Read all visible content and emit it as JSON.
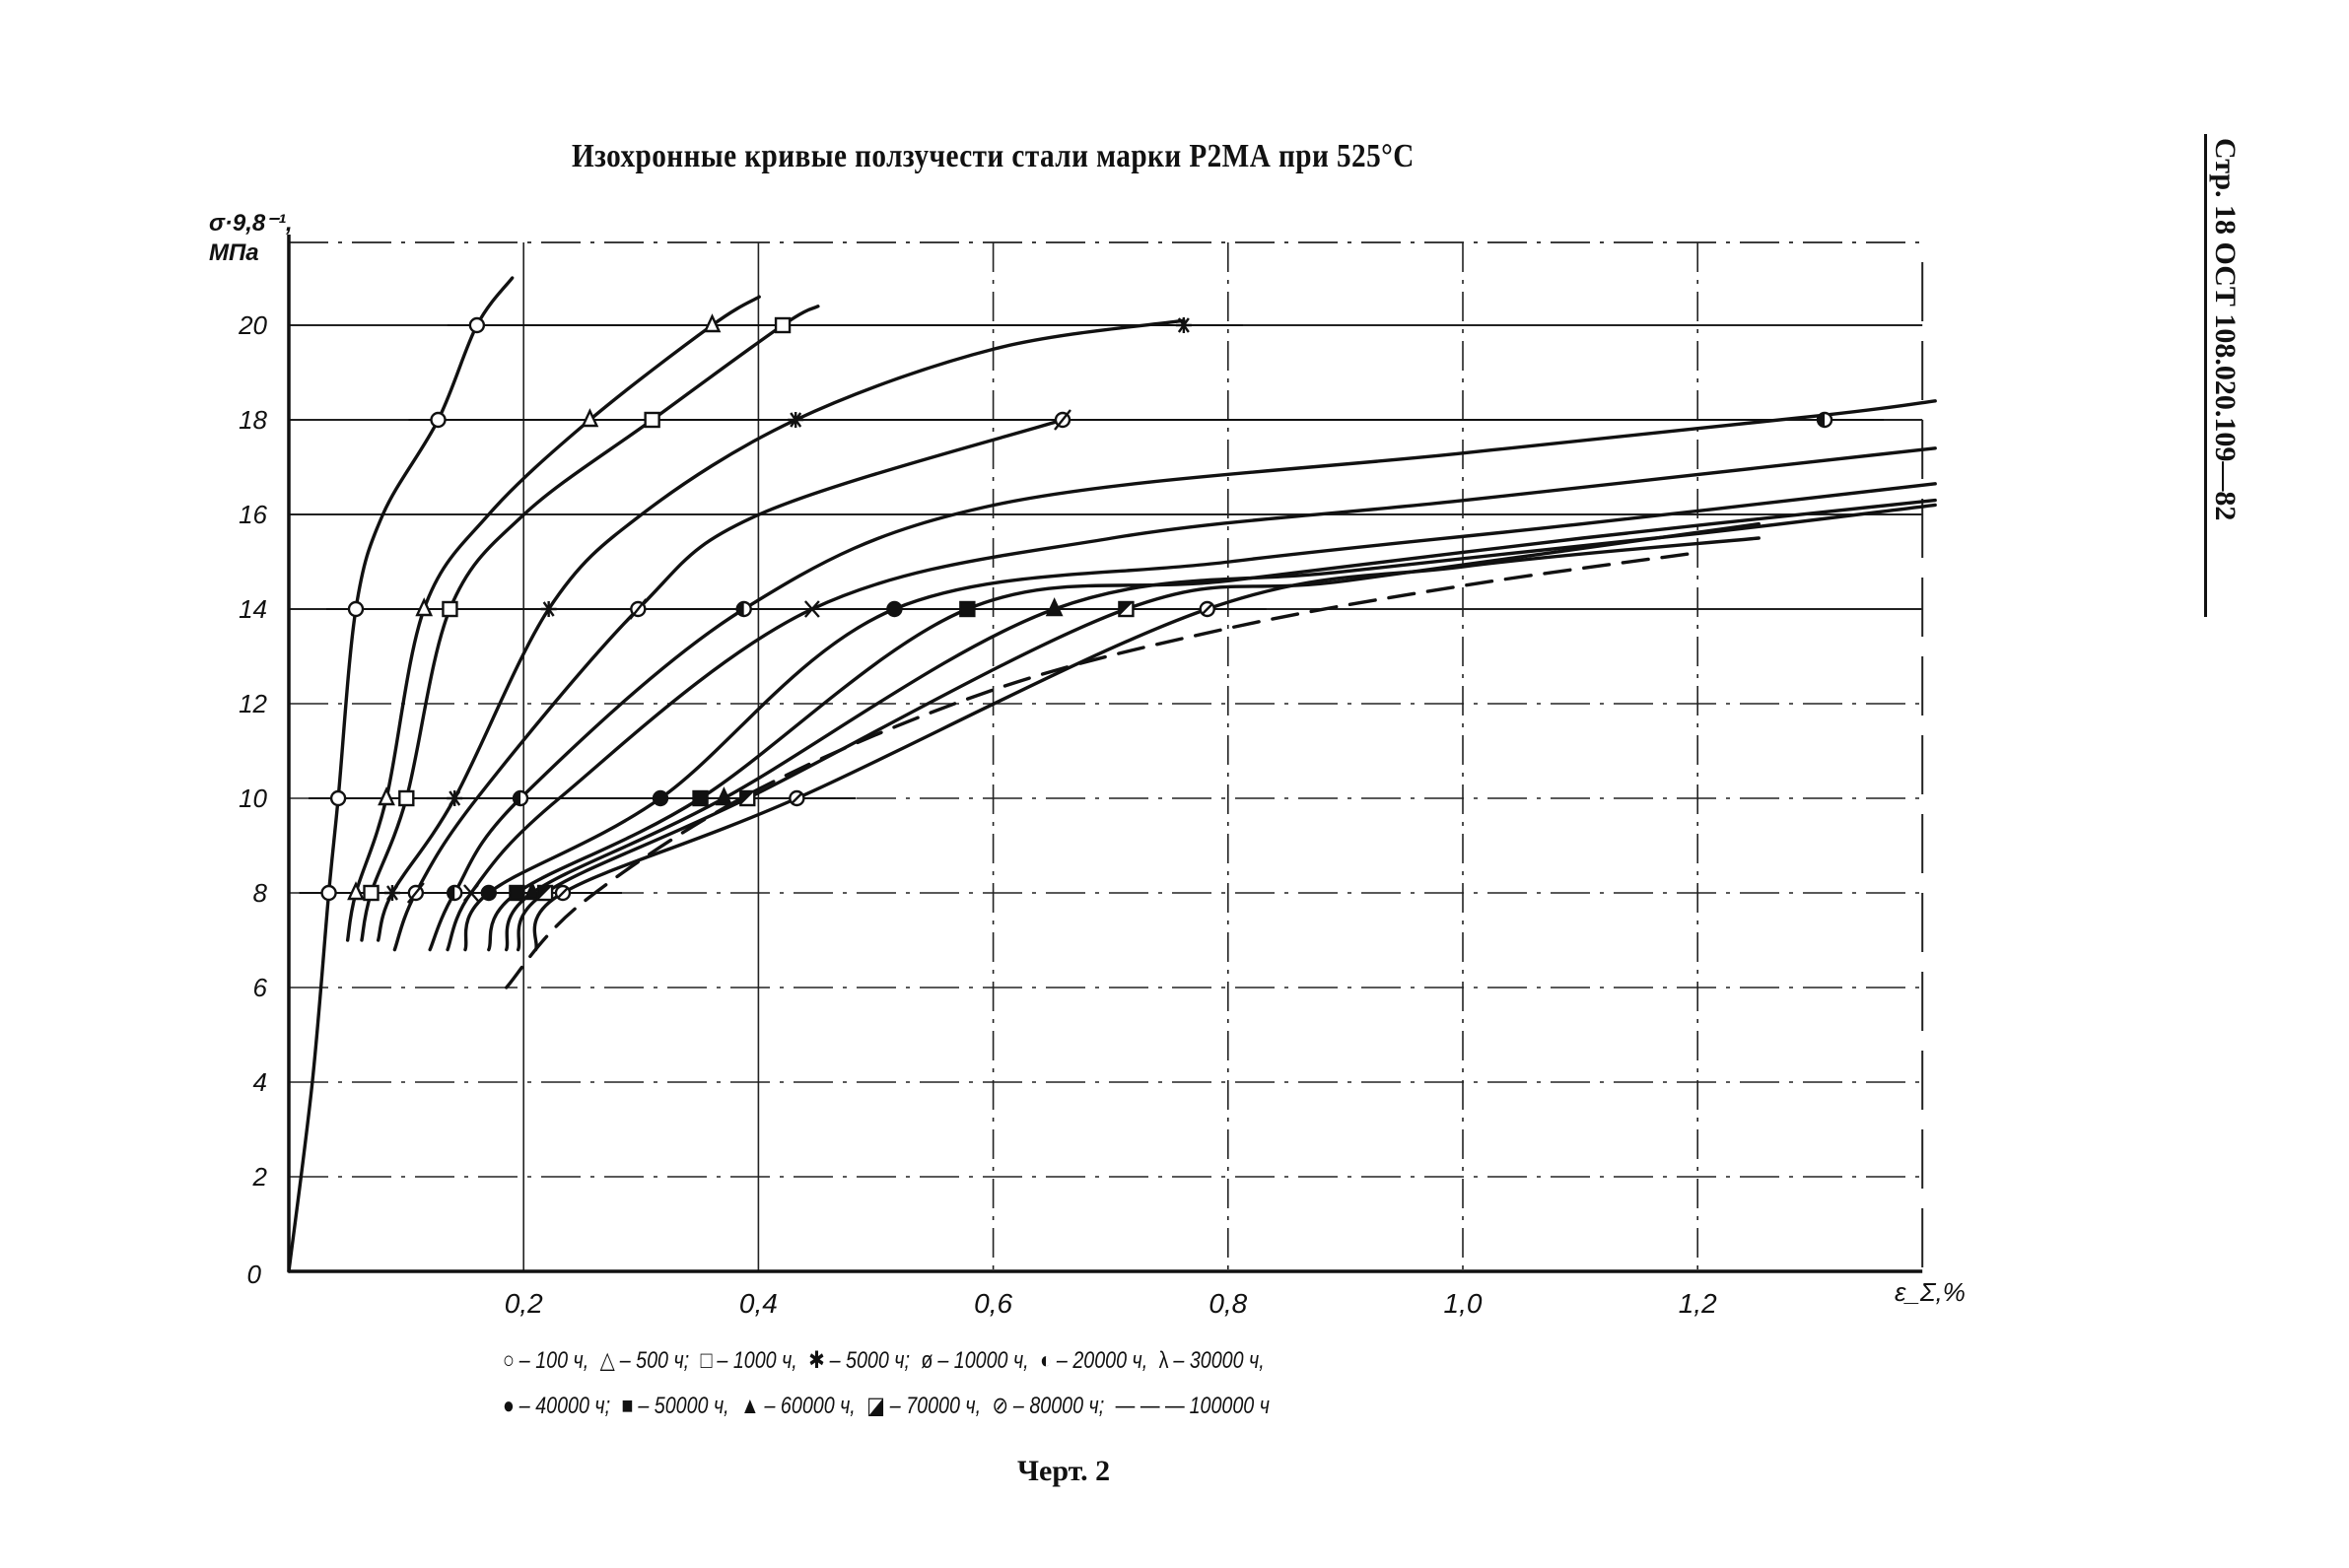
{
  "page": {
    "side_reference": "Стр. 18 ОСТ 108.020.109—82",
    "caption": "Черт. 2"
  },
  "chart_data": {
    "type": "line",
    "title": "Изохронные кривые ползучести стали марки Р2МА при 525°С",
    "ylabel_line1": "σ·9,8⁻¹,",
    "ylabel_line2": "МПа",
    "xlabel": "ε_Σ,%",
    "xlim": [
      0,
      1.4
    ],
    "ylim": [
      0,
      22
    ],
    "x_ticks": [
      {
        "value": 0.2,
        "label": "0,2"
      },
      {
        "value": 0.4,
        "label": "0,4"
      },
      {
        "value": 0.6,
        "label": "0,6"
      },
      {
        "value": 0.8,
        "label": "0,8"
      },
      {
        "value": 1.0,
        "label": "1,0"
      },
      {
        "value": 1.2,
        "label": "1,2"
      }
    ],
    "y_ticks": [
      {
        "value": 0,
        "label": "0"
      },
      {
        "value": 2,
        "label": "2"
      },
      {
        "value": 4,
        "label": "4"
      },
      {
        "value": 6,
        "label": "6"
      },
      {
        "value": 8,
        "label": "8"
      },
      {
        "value": 10,
        "label": "10"
      },
      {
        "value": 12,
        "label": "12"
      },
      {
        "value": 14,
        "label": "14"
      },
      {
        "value": 16,
        "label": "16"
      },
      {
        "value": 18,
        "label": "18"
      },
      {
        "value": 20,
        "label": "20"
      }
    ],
    "grid": true,
    "legend_position": "bottom",
    "series": [
      {
        "name": "100 ч",
        "marker": "circle-open",
        "dashed": false,
        "points": [
          [
            0,
            0
          ],
          [
            0.02,
            4
          ],
          [
            0.034,
            8
          ],
          [
            0.042,
            10
          ],
          [
            0.057,
            14
          ],
          [
            0.08,
            16
          ],
          [
            0.127,
            18
          ],
          [
            0.16,
            20
          ],
          [
            0.19,
            21
          ]
        ]
      },
      {
        "name": "500 ч",
        "marker": "triangle-open",
        "dashed": false,
        "points": [
          [
            0.05,
            7
          ],
          [
            0.057,
            8
          ],
          [
            0.083,
            10
          ],
          [
            0.115,
            14
          ],
          [
            0.17,
            16
          ],
          [
            0.256,
            18
          ],
          [
            0.36,
            20
          ],
          [
            0.4,
            20.6
          ]
        ]
      },
      {
        "name": "1000 ч",
        "marker": "square-open",
        "dashed": false,
        "points": [
          [
            0.062,
            7
          ],
          [
            0.07,
            8
          ],
          [
            0.1,
            10
          ],
          [
            0.137,
            14
          ],
          [
            0.2,
            16
          ],
          [
            0.309,
            18
          ],
          [
            0.42,
            20
          ],
          [
            0.45,
            20.4
          ]
        ]
      },
      {
        "name": "5000 ч",
        "marker": "asterisk",
        "dashed": false,
        "points": [
          [
            0.076,
            7
          ],
          [
            0.088,
            8
          ],
          [
            0.141,
            10
          ],
          [
            0.221,
            14
          ],
          [
            0.3,
            16
          ],
          [
            0.431,
            18
          ],
          [
            0.6,
            19.5
          ],
          [
            0.761,
            20.1
          ]
        ]
      },
      {
        "name": "10000 ч",
        "marker": "circle-slash",
        "dashed": false,
        "points": [
          [
            0.09,
            6.8
          ],
          [
            0.108,
            8
          ],
          [
            0.16,
            10
          ],
          [
            0.297,
            14
          ],
          [
            0.4,
            16
          ],
          [
            0.658,
            18
          ]
        ]
      },
      {
        "name": "20000 ч",
        "marker": "circle-half",
        "dashed": false,
        "points": [
          [
            0.12,
            6.8
          ],
          [
            0.141,
            8
          ],
          [
            0.197,
            10
          ],
          [
            0.387,
            14
          ],
          [
            0.6,
            16.2
          ],
          [
            1.0,
            17.3
          ],
          [
            1.306,
            18.1
          ],
          [
            1.4,
            18.4
          ]
        ]
      },
      {
        "name": "30000 ч",
        "marker": "lambda",
        "dashed": false,
        "points": [
          [
            0.135,
            6.8
          ],
          [
            0.155,
            8
          ],
          [
            0.23,
            10
          ],
          [
            0.445,
            14
          ],
          [
            0.7,
            15.5
          ],
          [
            1.0,
            16.3
          ],
          [
            1.4,
            17.4
          ]
        ]
      },
      {
        "name": "40000 ч",
        "marker": "circle-filled",
        "dashed": false,
        "points": [
          [
            0.15,
            6.8
          ],
          [
            0.17,
            8
          ],
          [
            0.316,
            10
          ],
          [
            0.515,
            14
          ],
          [
            0.8,
            15
          ],
          [
            1.1,
            15.8
          ],
          [
            1.4,
            16.65
          ]
        ]
      },
      {
        "name": "50000 ч",
        "marker": "square-filled",
        "dashed": false,
        "points": [
          [
            0.17,
            6.8
          ],
          [
            0.194,
            8
          ],
          [
            0.35,
            10
          ],
          [
            0.577,
            14
          ],
          [
            0.8,
            14.6
          ],
          [
            1.1,
            15.5
          ],
          [
            1.4,
            16.3
          ]
        ]
      },
      {
        "name": "60000 ч",
        "marker": "triangle-filled",
        "dashed": false,
        "points": [
          [
            0.185,
            6.8
          ],
          [
            0.207,
            8
          ],
          [
            0.37,
            10
          ],
          [
            0.651,
            14
          ],
          [
            0.9,
            14.8
          ],
          [
            1.2,
            15.6
          ],
          [
            1.4,
            16.2
          ]
        ]
      },
      {
        "name": "70000 ч",
        "marker": "square-half",
        "dashed": false,
        "points": [
          [
            0.195,
            6.8
          ],
          [
            0.218,
            8
          ],
          [
            0.39,
            10
          ],
          [
            0.712,
            14
          ],
          [
            0.9,
            14.6
          ],
          [
            1.25,
            15.8
          ]
        ]
      },
      {
        "name": "80000 ч",
        "marker": "circle-cross",
        "dashed": false,
        "points": [
          [
            0.21,
            6.8
          ],
          [
            0.233,
            8
          ],
          [
            0.432,
            10
          ],
          [
            0.781,
            14
          ],
          [
            1.0,
            14.9
          ],
          [
            1.25,
            15.5
          ]
        ]
      },
      {
        "name": "100000 ч",
        "marker": "none",
        "dashed": true,
        "points": [
          [
            0.185,
            6
          ],
          [
            0.25,
            7.8
          ],
          [
            0.4,
            10.2
          ],
          [
            0.6,
            12.3
          ],
          [
            0.8,
            13.6
          ],
          [
            1.0,
            14.5
          ],
          [
            1.2,
            15.2
          ]
        ]
      }
    ],
    "marker_rows": [
      {
        "stress": 20,
        "points": [
          [
            0.16,
            "circle-open"
          ],
          [
            0.36,
            "triangle-open"
          ],
          [
            0.42,
            "square-open"
          ],
          [
            0.761,
            "asterisk"
          ]
        ]
      },
      {
        "stress": 18,
        "points": [
          [
            0.127,
            "circle-open"
          ],
          [
            0.256,
            "triangle-open"
          ],
          [
            0.309,
            "square-open"
          ],
          [
            0.431,
            "asterisk"
          ],
          [
            0.658,
            "circle-slash"
          ],
          [
            1.306,
            "circle-half"
          ]
        ]
      },
      {
        "stress": 14,
        "points": [
          [
            0.057,
            "circle-open"
          ],
          [
            0.115,
            "triangle-open"
          ],
          [
            0.137,
            "square-open"
          ],
          [
            0.221,
            "asterisk"
          ],
          [
            0.297,
            "circle-slash"
          ],
          [
            0.387,
            "circle-half"
          ],
          [
            0.445,
            "lambda"
          ],
          [
            0.515,
            "circle-filled"
          ],
          [
            0.577,
            "square-filled"
          ],
          [
            0.651,
            "triangle-filled"
          ],
          [
            0.712,
            "square-half"
          ],
          [
            0.781,
            "circle-cross"
          ]
        ]
      },
      {
        "stress": 10,
        "points": [
          [
            0.042,
            "circle-open"
          ],
          [
            0.083,
            "triangle-open"
          ],
          [
            0.1,
            "square-open"
          ],
          [
            0.141,
            "asterisk"
          ],
          [
            0.197,
            "circle-half"
          ],
          [
            0.316,
            "circle-filled"
          ],
          [
            0.35,
            "square-filled"
          ],
          [
            0.37,
            "triangle-filled"
          ],
          [
            0.39,
            "square-half"
          ],
          [
            0.432,
            "circle-cross"
          ]
        ]
      },
      {
        "stress": 8,
        "points": [
          [
            0.034,
            "circle-open"
          ],
          [
            0.057,
            "triangle-open"
          ],
          [
            0.07,
            "square-open"
          ],
          [
            0.088,
            "asterisk"
          ],
          [
            0.108,
            "circle-slash"
          ],
          [
            0.141,
            "circle-half"
          ],
          [
            0.155,
            "lambda"
          ],
          [
            0.17,
            "circle-filled"
          ],
          [
            0.194,
            "square-filled"
          ],
          [
            0.207,
            "triangle-filled"
          ],
          [
            0.218,
            "square-half"
          ],
          [
            0.233,
            "circle-cross"
          ]
        ]
      }
    ],
    "legend": {
      "row1": [
        {
          "symbol": "○",
          "label": "– 100 ч,"
        },
        {
          "symbol": "△",
          "label": "– 500 ч;"
        },
        {
          "symbol": "□",
          "label": "– 1000 ч,"
        },
        {
          "symbol": "✱",
          "label": "– 5000 ч;"
        },
        {
          "symbol": "ø",
          "label": "– 10000 ч,"
        },
        {
          "symbol": "◐",
          "label": "– 20000 ч,"
        },
        {
          "symbol": "λ",
          "label": "– 30000 ч,"
        }
      ],
      "row2": [
        {
          "symbol": "●",
          "label": "– 40000 ч;"
        },
        {
          "symbol": "■",
          "label": "– 50000 ч,"
        },
        {
          "symbol": "▲",
          "label": "– 60000 ч,"
        },
        {
          "symbol": "◪",
          "label": "– 70000 ч,"
        },
        {
          "symbol": "⊘",
          "label": "– 80000 ч;"
        },
        {
          "symbol": "— — —",
          "label": "100000 ч"
        }
      ]
    }
  },
  "style": {
    "ink": "#111111",
    "paper": "#ffffff",
    "grid": "#222222"
  }
}
